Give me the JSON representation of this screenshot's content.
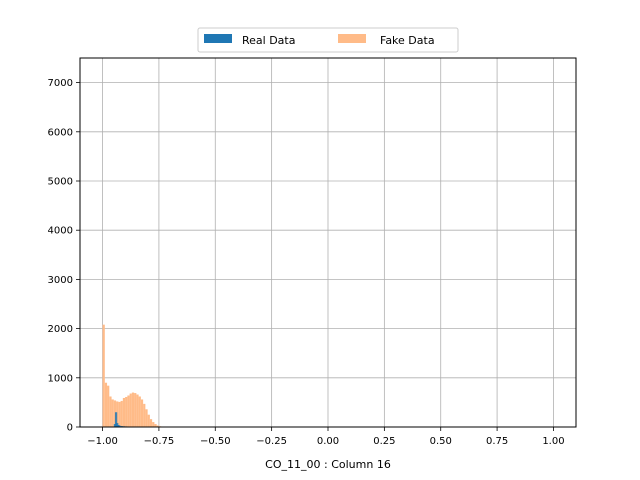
{
  "chart_data": {
    "type": "bar",
    "xlabel": "CO_11_00 : Column 16",
    "ylabel": "",
    "xlim": [
      -1.1,
      1.1
    ],
    "ylim": [
      0,
      7500
    ],
    "xticks": [
      -1.0,
      -0.75,
      -0.5,
      -0.25,
      0.0,
      0.25,
      0.5,
      0.75,
      1.0
    ],
    "xtick_labels": [
      "−1.00",
      "−0.75",
      "−0.50",
      "−0.25",
      "0.00",
      "0.25",
      "0.50",
      "0.75",
      "1.00"
    ],
    "yticks": [
      0,
      1000,
      2000,
      3000,
      4000,
      5000,
      6000,
      7000
    ],
    "ytick_labels": [
      "0",
      "1000",
      "2000",
      "3000",
      "4000",
      "5000",
      "6000",
      "7000"
    ],
    "grid": true,
    "legend": {
      "position": "top-center",
      "columns": 2
    },
    "series": [
      {
        "name": "Real Data",
        "color": "#1f77b4",
        "bin_width": 0.01,
        "bins": [
          [
            -0.95,
            60
          ],
          [
            -0.945,
            300
          ],
          [
            -0.94,
            80
          ],
          [
            -0.935,
            40
          ],
          [
            -0.93,
            30
          ],
          [
            -0.92,
            20
          ],
          [
            -0.91,
            15
          ],
          [
            -0.9,
            12
          ],
          [
            -0.89,
            10
          ],
          [
            -0.88,
            8
          ]
        ]
      },
      {
        "name": "Fake Data",
        "color": "#ffbb88",
        "bin_width": 0.01,
        "bins": [
          [
            -1.0,
            2080
          ],
          [
            -0.99,
            900
          ],
          [
            -0.98,
            840
          ],
          [
            -0.97,
            620
          ],
          [
            -0.96,
            560
          ],
          [
            -0.95,
            540
          ],
          [
            -0.94,
            520
          ],
          [
            -0.93,
            510
          ],
          [
            -0.92,
            530
          ],
          [
            -0.91,
            590
          ],
          [
            -0.9,
            610
          ],
          [
            -0.89,
            640
          ],
          [
            -0.88,
            680
          ],
          [
            -0.87,
            700
          ],
          [
            -0.86,
            690
          ],
          [
            -0.85,
            660
          ],
          [
            -0.84,
            620
          ],
          [
            -0.83,
            560
          ],
          [
            -0.82,
            470
          ],
          [
            -0.81,
            360
          ],
          [
            -0.8,
            250
          ],
          [
            -0.79,
            160
          ],
          [
            -0.78,
            100
          ],
          [
            -0.77,
            60
          ],
          [
            -0.76,
            30
          ],
          [
            -0.75,
            15
          ],
          [
            -0.74,
            8
          ]
        ]
      }
    ]
  }
}
